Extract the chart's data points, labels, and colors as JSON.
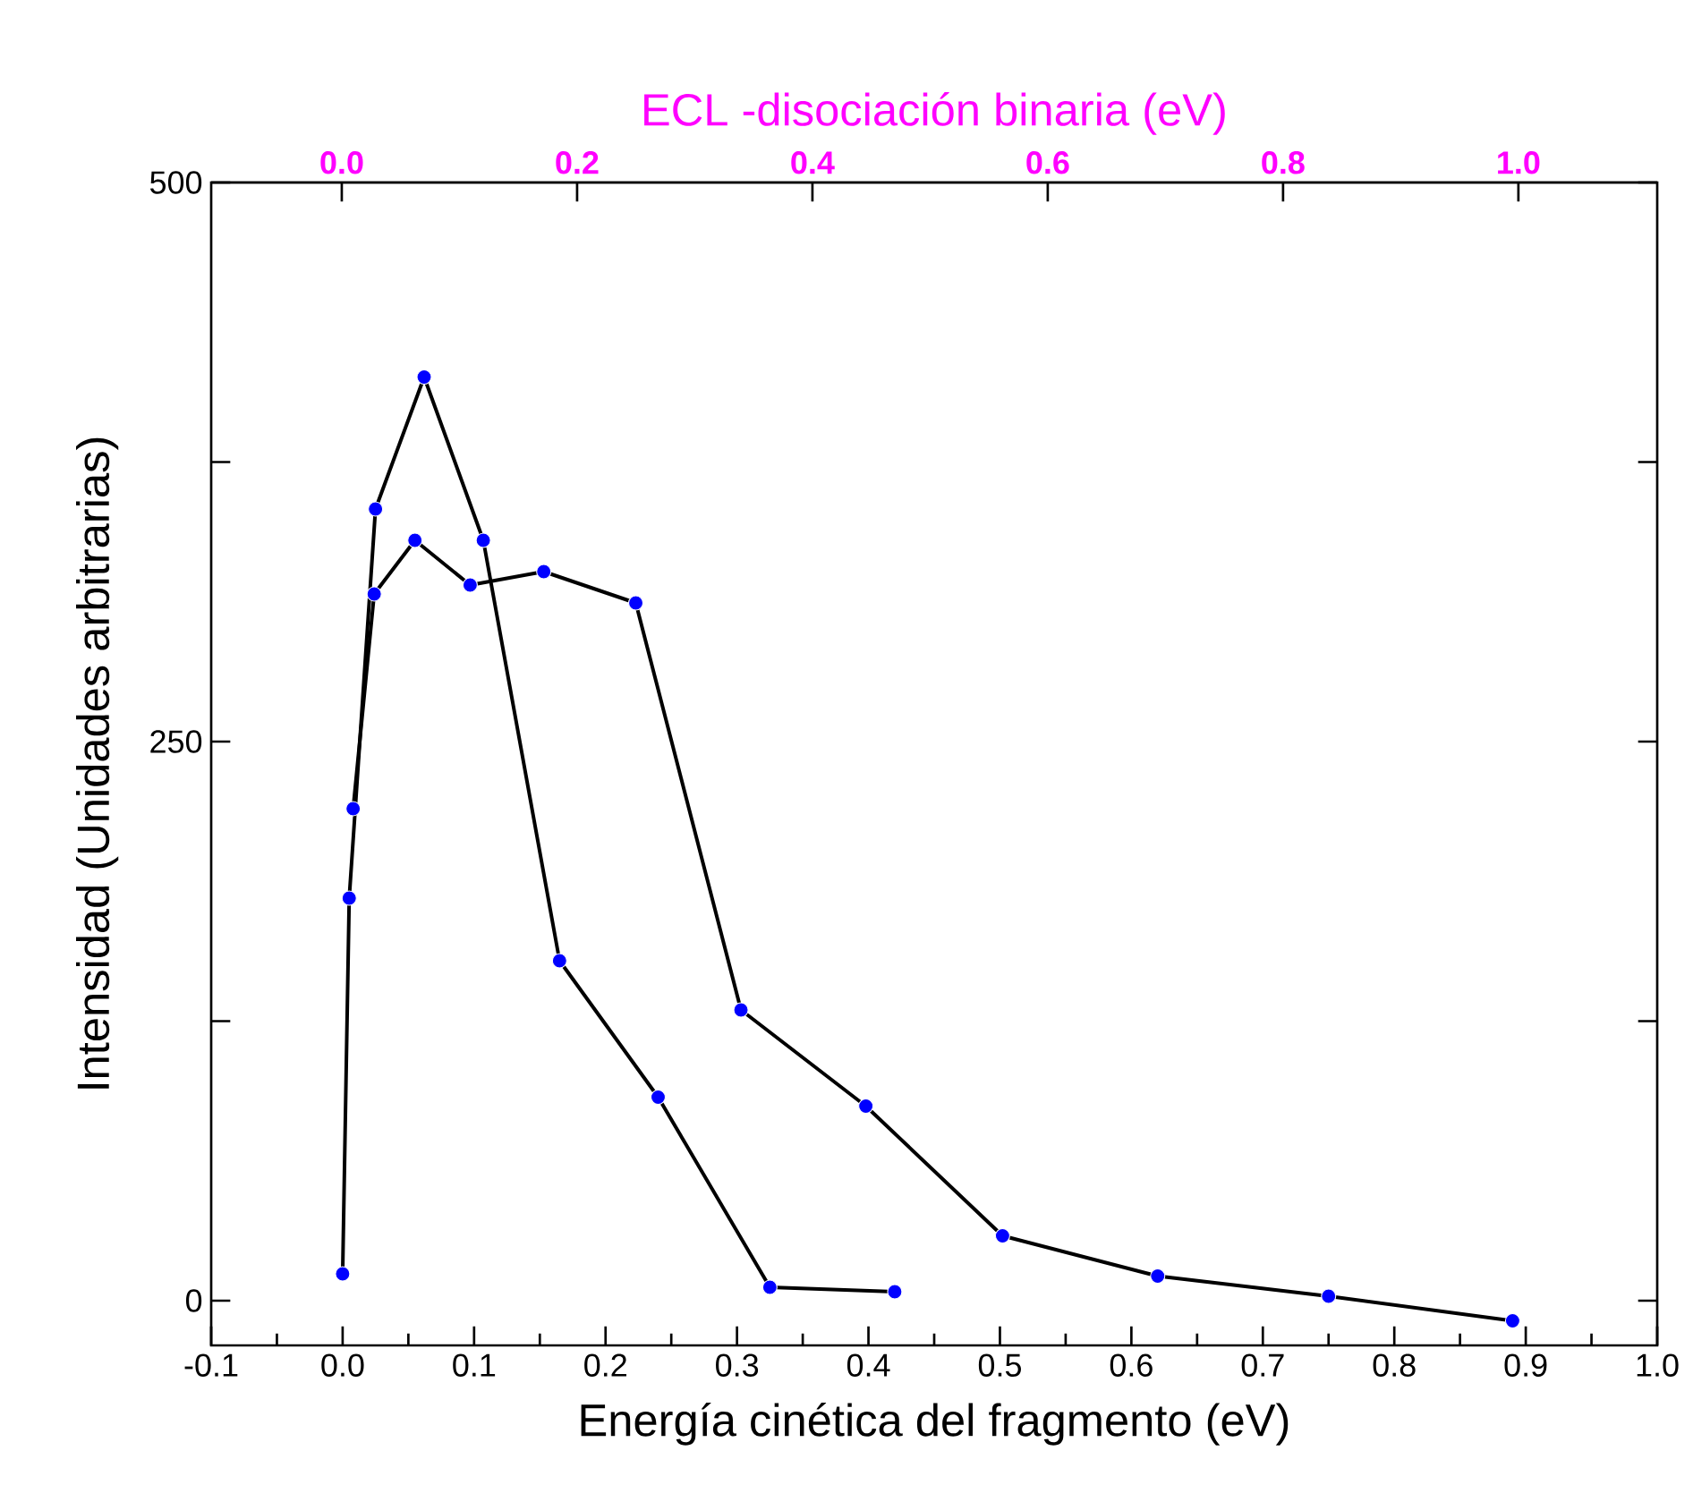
{
  "chart_data": {
    "type": "line",
    "xlabel": "Energía cinética del fragmento (eV)",
    "ylabel": "Intensidad (Unidades arbitrarias)",
    "x2label": "ECL -disociación binaria (eV)",
    "xlim": [
      -0.1,
      1.0
    ],
    "xticks": [
      -0.1,
      {
        "value": 0,
        "label": "0.0"
      },
      0.1,
      0.2,
      0.3,
      0.4,
      0.5,
      0.6,
      0.7,
      0.8,
      0.9,
      {
        "value": 1,
        "label": "1.0"
      }
    ],
    "x2lim": [
      -0.111,
      1.118
    ],
    "x2ticks": [
      {
        "value": 0,
        "label": "0.0"
      },
      0.2,
      0.4,
      0.6,
      0.8,
      {
        "value": 1,
        "label": "1.0"
      }
    ],
    "ylim": [
      -20,
      500
    ],
    "yticks": [
      0,
      {
        "value": 125,
        "label": null
      },
      250,
      {
        "value": 375,
        "label": null
      },
      500
    ],
    "marker": "circle",
    "line_style": "solid",
    "grid": false,
    "series": [
      {
        "color": "#0000ff",
        "x": [
          0,
          0.005,
          0.025,
          0.062,
          0.107,
          0.165,
          0.24,
          0.325,
          0.42
        ],
        "values": [
          12,
          180,
          354,
          413,
          340,
          152,
          91,
          6,
          4
        ]
      },
      {
        "color": "#0000ff",
        "x": [
          0.008,
          0.024,
          0.055,
          0.097,
          0.153,
          0.223,
          0.303,
          0.398,
          0.502,
          0.62,
          0.75,
          0.89
        ],
        "values": [
          220,
          316,
          340,
          320,
          326,
          312,
          130,
          87,
          29,
          11,
          2,
          -9
        ]
      }
    ]
  }
}
